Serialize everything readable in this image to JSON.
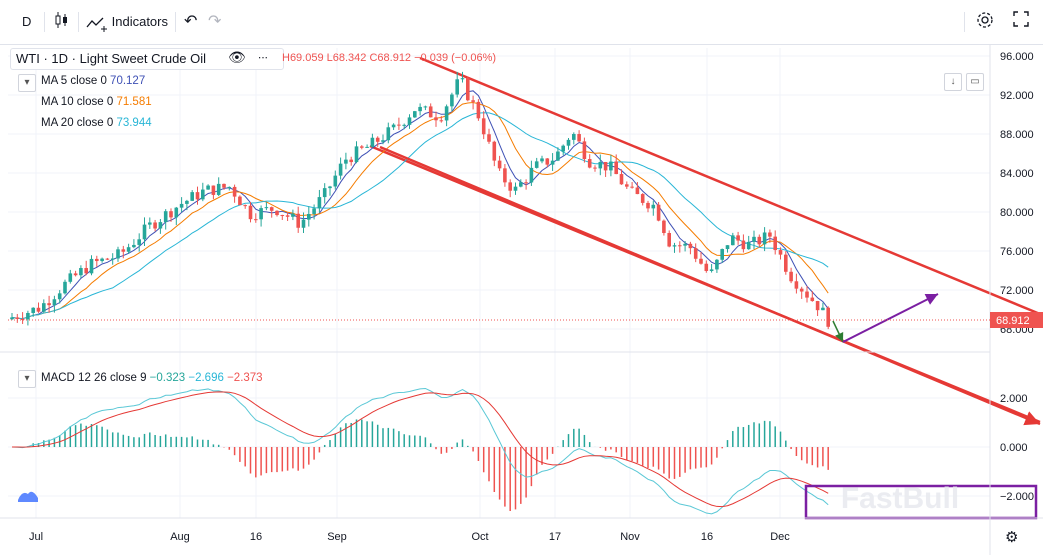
{
  "toolbar": {
    "interval": "D",
    "indicators_label": "Indicators"
  },
  "legend": {
    "symbol": "WTI",
    "interval": "1D",
    "name": "Light Sweet Crude Oil",
    "dots": "∙∙∙",
    "ohlc": "H69.059  L68.342  C68.912  −0.039 (−0.06%)",
    "ma": [
      {
        "label": "MA 5 close 0",
        "value": "70.127",
        "color": "#3f51b5"
      },
      {
        "label": "MA 10 close 0",
        "value": "71.581",
        "color": "#f57c00"
      },
      {
        "label": "MA 20 close 0",
        "value": "73.944",
        "color": "#29b6d6"
      }
    ],
    "macd": {
      "label": "MACD 12 26 close 9",
      "hist": "−0.323",
      "macd": "−2.696",
      "signal": "−2.373"
    }
  },
  "price_axis": {
    "labels": [
      "96.000",
      "92.000",
      "88.000",
      "84.000",
      "80.000",
      "76.000",
      "72.000",
      "68.000"
    ],
    "current": "68.912"
  },
  "macd_axis": {
    "labels": [
      "2.000",
      "0.000",
      "−2.000"
    ]
  },
  "time_axis": {
    "labels": [
      "Jul",
      "Aug",
      "16",
      "Sep",
      "Oct",
      "17",
      "Nov",
      "16",
      "Dec"
    ]
  },
  "watermark": "FastBull",
  "chart_data": {
    "type": "candlestick",
    "symbol": "WTI 1D Light Sweet Crude Oil",
    "ylim": [
      66.5,
      97
    ],
    "last_close": 68.912,
    "indicators": [
      "MA 5",
      "MA 10",
      "MA 20",
      "MACD 12 26 9"
    ],
    "annotations": [
      "descending red channel",
      "green arrow to lower channel line",
      "purple arrow up toward upper line",
      "purple rectangle on MACD"
    ],
    "colors": {
      "up": "#26a69a",
      "down": "#ef5350",
      "channel": "#e53935",
      "arrow_up": "#7b1fa2",
      "arrow_down": "#2e7d32",
      "box": "#7b1fa2"
    }
  }
}
